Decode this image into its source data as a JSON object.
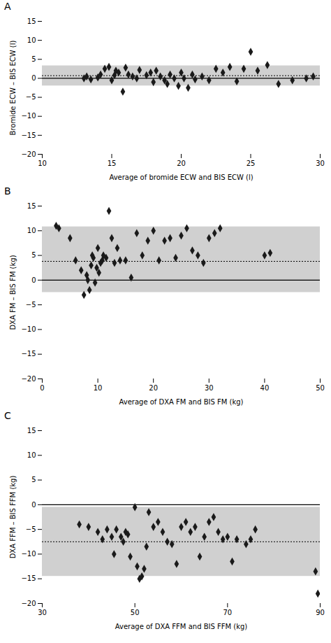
{
  "chart_data": [
    {
      "type": "scatter",
      "title": "A",
      "xlabel": "Average of bromide ECW and BIS ECW (l)",
      "ylabel": "Bromide ECW – BIS ECW (l)",
      "xlim": [
        10,
        30
      ],
      "ylim": [
        -20,
        15
      ],
      "xticks": [
        10,
        15,
        20,
        25,
        30
      ],
      "yticks": [
        -20,
        -15,
        -10,
        -5,
        0,
        5,
        10,
        15
      ],
      "color": "#1a1a1a",
      "marker": "diamond",
      "band": {
        "low": -2.0,
        "high": 3.3,
        "color": "#d0d0d0"
      },
      "lines": [
        {
          "y": 0.0,
          "line_style": "solid",
          "color": "#000000"
        },
        {
          "y": 0.7,
          "line_style": "dotted",
          "color": "#000000"
        }
      ],
      "x": [
        13.0,
        13.2,
        13.5,
        14.0,
        14.2,
        14.5,
        14.8,
        15.0,
        15.2,
        15.3,
        15.5,
        15.8,
        16.0,
        16.2,
        16.5,
        16.8,
        17.0,
        17.5,
        17.8,
        18.0,
        18.2,
        18.5,
        18.8,
        19.0,
        19.2,
        19.5,
        19.8,
        20.0,
        20.2,
        20.5,
        20.8,
        21.0,
        21.5,
        22.0,
        22.5,
        23.0,
        23.5,
        24.0,
        24.5,
        25.0,
        25.5,
        26.2,
        27.0,
        28.0,
        29.0,
        29.5
      ],
      "values": [
        0.0,
        0.5,
        -0.3,
        0.2,
        1.0,
        2.5,
        3.0,
        -0.5,
        0.8,
        2.0,
        1.5,
        -3.5,
        2.8,
        1.0,
        0.5,
        0.0,
        2.2,
        0.8,
        1.5,
        -1.0,
        2.0,
        0.5,
        -0.5,
        -1.5,
        1.0,
        0.0,
        -2.0,
        1.5,
        0.0,
        -2.5,
        1.0,
        -0.3,
        0.5,
        -0.5,
        2.5,
        1.5,
        3.0,
        -0.8,
        2.5,
        7.0,
        2.0,
        3.5,
        -1.5,
        -0.5,
        0.0,
        0.5
      ]
    },
    {
      "type": "scatter",
      "title": "B",
      "xlabel": "Average of DXA FM and BIS FM (kg)",
      "ylabel": "DXA FM – BIS FM (kg)",
      "xlim": [
        0,
        50
      ],
      "ylim": [
        -20,
        15
      ],
      "xticks": [
        0,
        10,
        20,
        30,
        40,
        50
      ],
      "yticks": [
        -20,
        -15,
        -10,
        -5,
        0,
        5,
        10,
        15
      ],
      "color": "#1a1a1a",
      "marker": "diamond",
      "band": {
        "low": -2.5,
        "high": 10.8,
        "color": "#d0d0d0"
      },
      "lines": [
        {
          "y": 0.0,
          "line_style": "solid",
          "color": "#000000"
        },
        {
          "y": 3.8,
          "line_style": "dotted",
          "color": "#000000"
        }
      ],
      "x": [
        2.5,
        3.0,
        5.0,
        6.0,
        7.0,
        7.5,
        8.0,
        8.2,
        8.5,
        8.8,
        9.0,
        9.2,
        9.5,
        9.8,
        10.0,
        10.2,
        10.5,
        10.8,
        11.0,
        11.5,
        12.0,
        12.5,
        13.0,
        13.5,
        14.0,
        15.0,
        16.0,
        17.0,
        18.0,
        19.0,
        20.0,
        21.0,
        22.0,
        23.0,
        24.0,
        25.0,
        26.0,
        27.0,
        28.0,
        29.0,
        30.0,
        31.0,
        32.0,
        40.0,
        41.0
      ],
      "values": [
        11.0,
        10.5,
        8.5,
        4.0,
        2.0,
        -3.0,
        1.0,
        0.0,
        -2.0,
        3.0,
        5.0,
        4.5,
        -0.5,
        2.5,
        6.5,
        1.5,
        3.5,
        4.0,
        5.0,
        4.5,
        14.0,
        8.5,
        3.5,
        6.5,
        4.0,
        4.0,
        0.5,
        9.5,
        5.0,
        8.0,
        10.0,
        4.0,
        8.0,
        8.5,
        4.5,
        9.0,
        10.5,
        6.0,
        5.0,
        3.5,
        8.5,
        9.5,
        10.5,
        5.0,
        5.5
      ]
    },
    {
      "type": "scatter",
      "title": "C",
      "xlabel": "Average of DXA FFM and BIS FFM (kg)",
      "ylabel": "DXA FFM – BIS FFM (kg)",
      "xlim": [
        30,
        90
      ],
      "ylim": [
        -20,
        15
      ],
      "xticks": [
        30,
        50,
        70,
        90
      ],
      "yticks": [
        -20,
        -15,
        -10,
        -5,
        0,
        5,
        10,
        15
      ],
      "color": "#1a1a1a",
      "marker": "diamond",
      "band": {
        "low": -14.5,
        "high": -0.5,
        "color": "#d0d0d0"
      },
      "lines": [
        {
          "y": 0.0,
          "line_style": "solid",
          "color": "#000000"
        },
        {
          "y": -7.5,
          "line_style": "dotted",
          "color": "#000000"
        }
      ],
      "x": [
        38.0,
        40.0,
        42.0,
        43.0,
        44.0,
        45.0,
        45.5,
        46.0,
        47.0,
        47.5,
        48.0,
        48.5,
        49.0,
        50.0,
        50.5,
        51.0,
        51.5,
        52.0,
        52.5,
        53.0,
        54.0,
        55.0,
        56.0,
        57.0,
        58.0,
        59.0,
        60.0,
        61.0,
        62.0,
        63.0,
        64.0,
        65.0,
        66.0,
        67.0,
        68.0,
        69.0,
        70.0,
        71.0,
        72.0,
        74.0,
        75.0,
        76.0,
        89.0,
        89.5
      ],
      "values": [
        -4.0,
        -4.5,
        -5.5,
        -7.0,
        -5.0,
        -6.5,
        -10.0,
        -5.0,
        -6.5,
        -7.5,
        -5.5,
        -6.0,
        -10.5,
        -0.5,
        -12.5,
        -15.0,
        -14.5,
        -13.0,
        -8.5,
        -1.5,
        -4.5,
        -3.5,
        -5.5,
        -7.5,
        -8.0,
        -12.0,
        -4.5,
        -3.5,
        -5.5,
        -4.5,
        -10.5,
        -6.5,
        -3.5,
        -2.5,
        -5.5,
        -7.0,
        -6.5,
        -11.5,
        -7.0,
        -8.0,
        -7.0,
        -5.0,
        -13.5,
        -18.0
      ]
    }
  ]
}
